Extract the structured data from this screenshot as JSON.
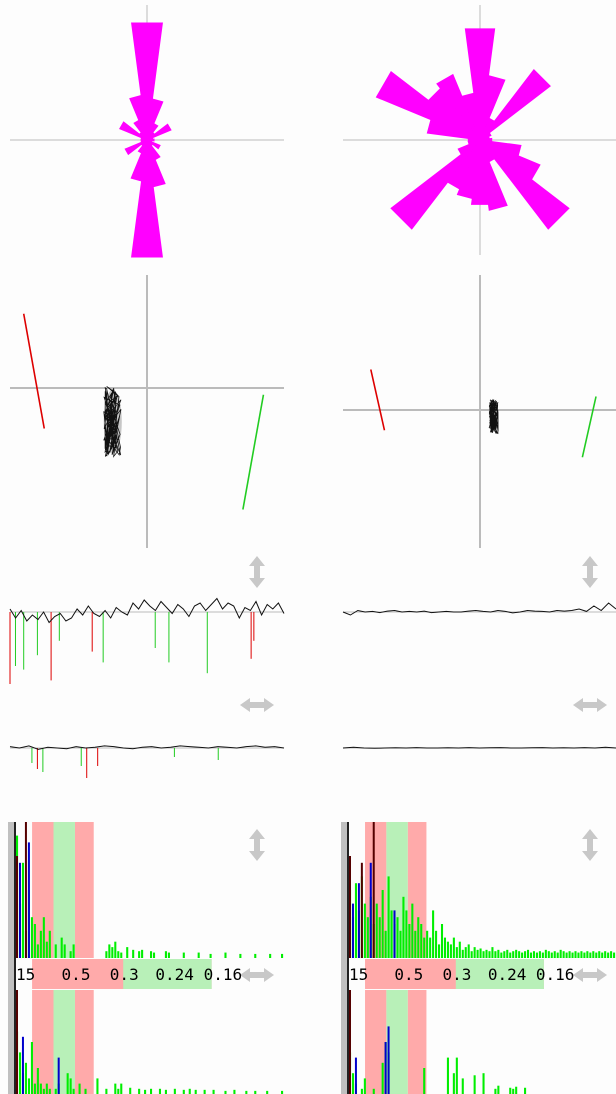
{
  "colors": {
    "rose": "#ff00ff",
    "tilt_red": "#dd0000",
    "tilt_green": "#22cc22",
    "trace": "#111111",
    "ellipse_fill": "#999999",
    "axis": "#bbbbbb",
    "red_band": "#ffaaaa",
    "green_band": "#b8f0b8",
    "bar_green": "#00ee00",
    "bar_blue": "#0000cc",
    "bar_dark": "#550000",
    "handle": "#c8c8c8"
  },
  "icons": {
    "vertical_resize": "double-vertical-arrow-icon",
    "horizontal_resize": "double-horizontal-arrow-icon"
  },
  "chart_data": [
    {
      "panel": "left",
      "type": "rose",
      "note": "polar rose, petal lengths by direction",
      "directions_deg": [
        0,
        15,
        30,
        45,
        60,
        75,
        90,
        105,
        120,
        135,
        150,
        165,
        180,
        195,
        210,
        225,
        240,
        255,
        270,
        285,
        300,
        315,
        330,
        345
      ],
      "values": [
        1.0,
        0.35,
        0.15,
        0.08,
        0.22,
        0.05,
        0.06,
        0.04,
        0.12,
        0.06,
        0.18,
        0.4,
        1.0,
        0.35,
        0.12,
        0.06,
        0.2,
        0.05,
        0.05,
        0.05,
        0.25,
        0.08,
        0.18,
        0.38
      ]
    },
    {
      "panel": "left",
      "type": "scatter",
      "note": "tilt trace with red/green tilt vectors",
      "trace_center": [
        -0.25,
        -0.25
      ],
      "trace_spread": [
        0.06,
        0.25
      ],
      "red_vector": [
        [
          -0.9,
          0.55
        ],
        [
          -0.75,
          -0.3
        ]
      ],
      "green_vector": [
        [
          0.85,
          -0.05
        ],
        [
          0.7,
          -0.9
        ]
      ]
    },
    {
      "panel": "left",
      "type": "line",
      "note": "upper timeseries",
      "values": [
        0.1,
        -0.2,
        0.05,
        -0.3,
        -0.1,
        -0.25,
        0.0,
        -0.35,
        -0.15,
        -0.05,
        -0.3,
        -0.2,
        0.1,
        -0.1,
        0.2,
        -0.05,
        -0.15,
        0.05,
        -0.2,
        0.15,
        0.0,
        -0.1,
        0.3,
        0.1,
        0.4,
        0.2,
        0.05,
        0.35,
        0.15,
        -0.05,
        0.25,
        0.1,
        -0.15,
        0.2,
        0.3,
        0.05,
        0.25,
        0.45,
        0.1,
        0.3,
        0.2,
        -0.2,
        0.15,
        0.05,
        0.35,
        -0.1,
        0.25,
        0.1,
        0.3,
        -0.05
      ],
      "spikes_red": [
        [
          0,
          -1.0
        ],
        [
          15,
          -0.95
        ],
        [
          30,
          -0.55
        ],
        [
          88,
          -0.65
        ],
        [
          89,
          -0.4
        ]
      ],
      "spikes_green": [
        [
          2,
          -0.75
        ],
        [
          5,
          -0.8
        ],
        [
          10,
          -0.6
        ],
        [
          18,
          -0.4
        ],
        [
          34,
          -0.7
        ],
        [
          53,
          -0.5
        ],
        [
          58,
          -0.7
        ],
        [
          72,
          -0.85
        ]
      ]
    },
    {
      "panel": "left",
      "type": "line",
      "note": "lower timeseries",
      "values": [
        0.1,
        0.0,
        0.15,
        -0.1,
        0.05,
        0.0,
        -0.05,
        0.1,
        0.0,
        0.05,
        0.15,
        0.1,
        0.0,
        -0.05,
        0.05,
        0.1,
        0.0,
        0.05,
        0.15,
        0.1,
        0.05,
        0.0,
        0.1,
        0.05,
        0.0,
        0.1,
        0.15,
        0.05,
        0.1,
        0.0
      ],
      "spikes_red": [
        [
          10,
          -0.7
        ],
        [
          28,
          -1.0
        ],
        [
          32,
          -0.6
        ]
      ],
      "spikes_green": [
        [
          8,
          -0.5
        ],
        [
          12,
          -0.8
        ],
        [
          26,
          -0.6
        ],
        [
          60,
          -0.3
        ],
        [
          76,
          -0.4
        ]
      ]
    },
    {
      "panel": "left",
      "type": "bar",
      "note": "upper spectrum",
      "green": [
        0.9,
        0.4,
        0.7,
        0.2,
        0.5,
        0.3,
        0.25,
        0.1,
        0.2,
        0.3,
        0.12,
        0.2,
        0.0,
        0.1,
        0.0,
        0.15,
        0.1,
        0.0,
        0.05,
        0.1,
        0.0,
        0.0,
        0.0,
        0.0,
        0.0,
        0.0,
        0.0,
        0.0,
        0.0,
        0.0,
        0.05,
        0.1,
        0.08,
        0.12,
        0.05,
        0.04,
        0.0,
        0.08,
        0.0,
        0.06,
        0.0,
        0.05,
        0.06,
        0.0,
        0.0,
        0.05,
        0.04,
        0.0,
        0.0,
        0.0,
        0.05,
        0.04,
        0.0,
        0.0,
        0.0,
        0.0,
        0.04,
        0.0,
        0.0,
        0.0,
        0.0,
        0.04,
        0.0,
        0.0,
        0.0,
        0.03,
        0.0,
        0.0,
        0.0,
        0.0,
        0.04,
        0.0,
        0.0,
        0.0,
        0.0,
        0.03,
        0.0,
        0.0,
        0.0,
        0.0,
        0.03,
        0.0,
        0.0,
        0.0,
        0.0,
        0.03,
        0.0,
        0.0,
        0.0,
        0.03
      ],
      "blue": [
        [
          1,
          0.7
        ],
        [
          4,
          0.85
        ]
      ],
      "dark": [
        [
          0,
          0.75
        ],
        [
          3,
          1.0
        ]
      ],
      "red_bands": [
        [
          0.06,
          0.14
        ],
        [
          0.22,
          0.29
        ]
      ],
      "green_bands": [
        [
          0.14,
          0.22
        ]
      ]
    },
    {
      "panel": "left",
      "type": "bar",
      "note": "lower spectrum",
      "green": [
        0.6,
        0.4,
        0.2,
        0.3,
        0.15,
        0.5,
        0.1,
        0.25,
        0.1,
        0.05,
        0.1,
        0.05,
        0.0,
        0.05,
        0.1,
        0.0,
        0.0,
        0.2,
        0.15,
        0.05,
        0.0,
        0.1,
        0.0,
        0.05,
        0.0,
        0.0,
        0.0,
        0.15,
        0.0,
        0.0,
        0.05,
        0.0,
        0.0,
        0.1,
        0.05,
        0.1,
        0.0,
        0.0,
        0.06,
        0.0,
        0.0,
        0.05,
        0.0,
        0.04,
        0.0,
        0.05,
        0.0,
        0.0,
        0.05,
        0.0,
        0.04,
        0.0,
        0.0,
        0.05,
        0.0,
        0.0,
        0.04,
        0.0,
        0.05,
        0.0,
        0.04,
        0.0,
        0.0,
        0.04,
        0.0,
        0.0,
        0.04,
        0.0,
        0.0,
        0.0,
        0.03,
        0.0,
        0.0,
        0.04,
        0.0,
        0.0,
        0.0,
        0.03,
        0.0,
        0.0,
        0.03,
        0.0,
        0.0,
        0.0,
        0.03,
        0.0,
        0.0,
        0.0,
        0.0,
        0.03
      ],
      "blue": [
        [
          2,
          0.55
        ],
        [
          14,
          0.35
        ]
      ],
      "dark": [
        [
          0,
          1.0
        ]
      ],
      "red_bands": [
        [
          0.06,
          0.14
        ],
        [
          0.22,
          0.29
        ]
      ],
      "green_bands": [
        [
          0.14,
          0.22
        ]
      ]
    },
    {
      "panel": "right",
      "type": "rose",
      "note": "polar rose, petal lengths by direction",
      "directions_deg": [
        0,
        15,
        30,
        45,
        60,
        75,
        90,
        105,
        120,
        135,
        150,
        165,
        180,
        195,
        210,
        225,
        240,
        255,
        270,
        285,
        300,
        315,
        330,
        345
      ],
      "values": [
        0.95,
        0.55,
        0.2,
        0.75,
        0.1,
        0.08,
        0.1,
        0.35,
        0.55,
        0.95,
        0.2,
        0.6,
        0.55,
        0.5,
        0.45,
        0.95,
        0.2,
        0.1,
        0.1,
        0.45,
        0.95,
        0.55,
        0.6,
        0.4
      ]
    },
    {
      "panel": "right",
      "type": "scatter",
      "note": "tilt trace with red/green tilt vectors",
      "trace_center": [
        0.1,
        -0.05
      ],
      "trace_spread": [
        0.03,
        0.12
      ],
      "red_vector": [
        [
          -0.8,
          0.3
        ],
        [
          -0.7,
          -0.15
        ]
      ],
      "green_vector": [
        [
          0.85,
          0.1
        ],
        [
          0.75,
          -0.35
        ]
      ]
    },
    {
      "panel": "right",
      "type": "line",
      "note": "upper timeseries",
      "values": [
        0.0,
        -0.1,
        0.05,
        0.0,
        0.02,
        -0.02,
        0.03,
        0.05,
        0.0,
        0.02,
        0.0,
        0.03,
        -0.02,
        0.0,
        0.02,
        0.0,
        0.0,
        0.03,
        0.05,
        0.02,
        0.0,
        0.05,
        0.02,
        -0.03,
        0.0,
        0.05,
        0.03,
        0.02,
        0.0,
        0.05,
        0.03,
        0.05,
        0.1,
        0.02,
        0.2,
        0.05,
        0.3,
        0.1
      ],
      "spikes_red": [],
      "spikes_green": []
    },
    {
      "panel": "right",
      "type": "line",
      "note": "lower timeseries",
      "values": [
        0.0,
        0.05,
        0.0,
        -0.02,
        0.0,
        0.02,
        0.0,
        0.03,
        0.0,
        0.0,
        0.02,
        0.0,
        0.03,
        0.0,
        0.02,
        0.03,
        0.0,
        0.0,
        0.02,
        0.03,
        0.0,
        0.02,
        0.0,
        0.03,
        0.0,
        0.05,
        0.0
      ],
      "spikes_red": [],
      "spikes_green": []
    },
    {
      "panel": "right",
      "type": "bar",
      "note": "upper spectrum",
      "green": [
        0.5,
        0.3,
        0.55,
        0.35,
        0.6,
        0.4,
        0.3,
        0.45,
        0.25,
        0.4,
        0.3,
        0.5,
        0.2,
        0.6,
        0.35,
        0.25,
        0.3,
        0.2,
        0.45,
        0.35,
        0.25,
        0.4,
        0.2,
        0.3,
        0.25,
        0.15,
        0.2,
        0.15,
        0.35,
        0.2,
        0.1,
        0.25,
        0.15,
        0.12,
        0.1,
        0.15,
        0.08,
        0.12,
        0.06,
        0.08,
        0.1,
        0.05,
        0.08,
        0.06,
        0.07,
        0.05,
        0.06,
        0.05,
        0.08,
        0.05,
        0.06,
        0.04,
        0.05,
        0.06,
        0.04,
        0.05,
        0.06,
        0.05,
        0.04,
        0.05,
        0.06,
        0.04,
        0.05,
        0.04,
        0.05,
        0.04,
        0.06,
        0.05,
        0.04,
        0.05,
        0.04,
        0.06,
        0.05,
        0.04,
        0.05,
        0.04,
        0.05,
        0.04,
        0.05,
        0.04,
        0.05,
        0.04,
        0.05,
        0.04,
        0.05,
        0.04,
        0.05,
        0.04,
        0.05,
        0.04
      ],
      "blue": [
        [
          1,
          0.4
        ],
        [
          3,
          0.55
        ],
        [
          7,
          0.7
        ],
        [
          15,
          0.35
        ]
      ],
      "dark": [
        [
          0,
          0.75
        ],
        [
          4,
          0.7
        ],
        [
          8,
          1.0
        ]
      ],
      "red_bands": [
        [
          0.06,
          0.14
        ],
        [
          0.22,
          0.29
        ]
      ],
      "green_bands": [
        [
          0.14,
          0.22
        ]
      ]
    },
    {
      "panel": "right",
      "type": "bar",
      "note": "lower spectrum",
      "green": [
        0.4,
        0.2,
        0.1,
        0.0,
        0.05,
        0.15,
        0.0,
        0.0,
        0.05,
        0.0,
        0.0,
        0.3,
        0.5,
        0.4,
        0.0,
        0.0,
        0.0,
        0.0,
        0.0,
        0.0,
        0.0,
        0.0,
        0.0,
        0.0,
        0.0,
        0.25,
        0.0,
        0.0,
        0.0,
        0.0,
        0.0,
        0.0,
        0.0,
        0.35,
        0.0,
        0.2,
        0.35,
        0.0,
        0.15,
        0.0,
        0.0,
        0.0,
        0.18,
        0.0,
        0.0,
        0.2,
        0.0,
        0.0,
        0.0,
        0.05,
        0.08,
        0.0,
        0.0,
        0.0,
        0.06,
        0.05,
        0.07,
        0.0,
        0.0,
        0.06,
        0.0,
        0.0,
        0.0,
        0.0,
        0.0,
        0.0,
        0.0,
        0.0,
        0.0,
        0.0,
        0.0,
        0.0,
        0.0,
        0.0,
        0.0,
        0.0,
        0.0,
        0.0,
        0.0,
        0.0,
        0.0,
        0.0,
        0.0,
        0.0,
        0.0,
        0.0,
        0.0,
        0.0,
        0.0,
        0.0
      ],
      "blue": [
        [
          2,
          0.35
        ],
        [
          12,
          0.5
        ],
        [
          13,
          0.65
        ]
      ],
      "dark": [
        [
          0,
          1.0
        ]
      ],
      "red_bands": [
        [
          0.06,
          0.14
        ],
        [
          0.22,
          0.29
        ]
      ],
      "green_bands": [
        [
          0.14,
          0.22
        ]
      ]
    }
  ],
  "period_labels": [
    "15",
    "0.5",
    "0.3",
    "0.24",
    "0.16"
  ]
}
